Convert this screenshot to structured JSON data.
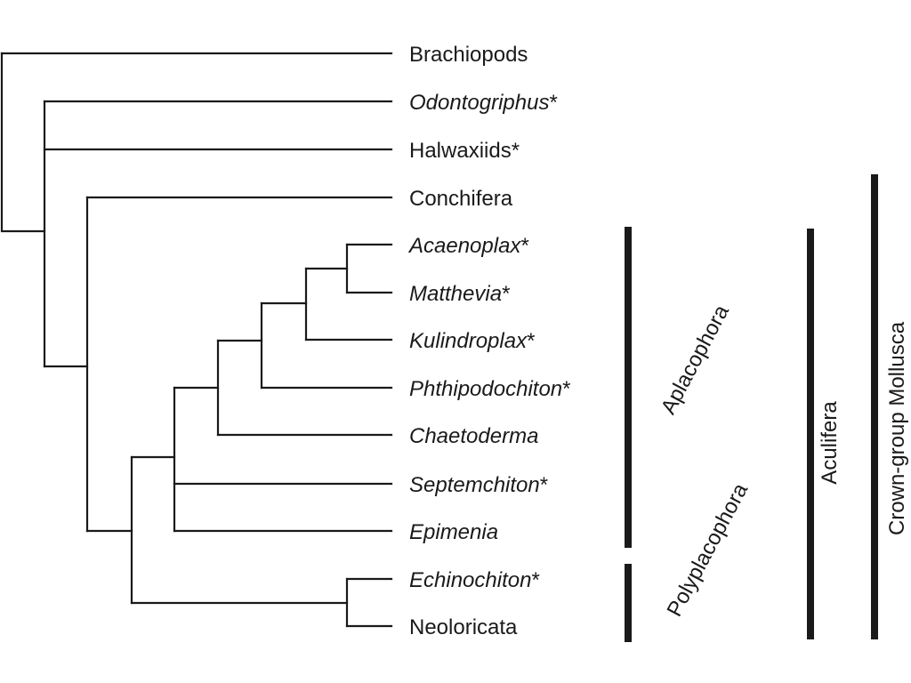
{
  "taxa": [
    {
      "id": "brachiopods",
      "label": "Brachiopods",
      "italic": false
    },
    {
      "id": "odontogriphus",
      "label": "Odontogriphus",
      "suffix": "*",
      "italic": true
    },
    {
      "id": "halwaxiids",
      "label": "Halwaxiids*",
      "italic": false
    },
    {
      "id": "conchifera",
      "label": "Conchifera",
      "italic": false
    },
    {
      "id": "acaenoplax",
      "label": "Acaenoplax",
      "suffix": "*",
      "italic": true
    },
    {
      "id": "matthevia",
      "label": "Matthevia",
      "suffix": "*",
      "italic": true
    },
    {
      "id": "kulindroplax",
      "label": "Kulindroplax",
      "suffix": "*",
      "italic": true
    },
    {
      "id": "phthipodochiton",
      "label": "Phthipodochiton",
      "suffix": "*",
      "italic": true
    },
    {
      "id": "chaetoderma",
      "label": "Chaetoderma",
      "italic": true
    },
    {
      "id": "septemchiton",
      "label": "Septemchiton",
      "suffix": "*",
      "italic": true
    },
    {
      "id": "epimenia",
      "label": "Epimenia",
      "italic": true
    },
    {
      "id": "echinochiton",
      "label": "Echinochiton",
      "suffix": "*",
      "italic": true
    },
    {
      "id": "neoloricata",
      "label": "Neoloricata",
      "italic": false
    }
  ],
  "clades": {
    "aplacophora": "Aplacophora",
    "polyplacophora": "Polyplacophora",
    "aculifera": "Aculifera",
    "crown_mollusca": "Crown-group Mollusca"
  }
}
